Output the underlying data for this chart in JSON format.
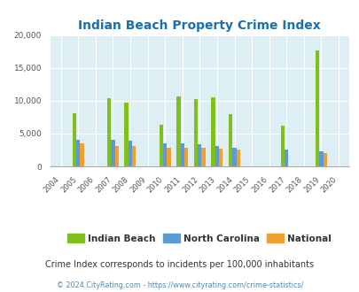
{
  "title": "Indian Beach Property Crime Index",
  "years": [
    2004,
    2005,
    2006,
    2007,
    2008,
    2009,
    2010,
    2011,
    2012,
    2013,
    2014,
    2015,
    2016,
    2017,
    2018,
    2019,
    2020
  ],
  "indian_beach": [
    0,
    8100,
    0,
    10450,
    9700,
    0,
    6350,
    10650,
    10300,
    10550,
    7900,
    0,
    0,
    6200,
    0,
    17600,
    0
  ],
  "north_carolina": [
    0,
    4100,
    0,
    4100,
    3900,
    0,
    3500,
    3500,
    3350,
    3100,
    2900,
    0,
    0,
    2600,
    0,
    2300,
    0
  ],
  "national": [
    0,
    3500,
    0,
    3100,
    3150,
    0,
    2900,
    2850,
    2800,
    2700,
    2600,
    0,
    0,
    0,
    0,
    2100,
    0
  ],
  "colors": {
    "indian_beach": "#7fc01e",
    "north_carolina": "#5b9bd5",
    "national": "#f0a030"
  },
  "bg_color": "#deeef5",
  "ylim": [
    0,
    20000
  ],
  "yticks": [
    0,
    5000,
    10000,
    15000,
    20000
  ],
  "subtitle": "Crime Index corresponds to incidents per 100,000 inhabitants",
  "footer": "© 2024 CityRating.com - https://www.cityrating.com/crime-statistics/",
  "title_color": "#1a6faf",
  "subtitle_color": "#333333",
  "footer_color": "#5588aa",
  "bar_width": 0.22
}
